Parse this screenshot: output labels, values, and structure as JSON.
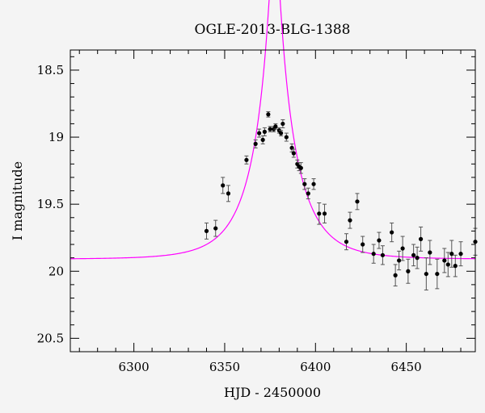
{
  "chart_data": {
    "type": "scatter",
    "title": "OGLE-2013-BLG-1388",
    "xlabel": "HJD - 2450000",
    "ylabel": "I magnitude",
    "xlim": [
      6265,
      6488
    ],
    "ylim": [
      20.6,
      18.35
    ],
    "y_inverted": true,
    "xticks": [
      6300,
      6350,
      6400,
      6450
    ],
    "yticks": [
      18.5,
      19,
      19.5,
      20,
      20.5
    ],
    "xtick_labels": [
      "6300",
      "6350",
      "6400",
      "6450"
    ],
    "ytick_labels": [
      "18.5",
      "19",
      "19.5",
      "20",
      "20.5"
    ],
    "grid": false,
    "colors": {
      "points": "#000000",
      "model": "#ff00ff",
      "errorbar": "#555555"
    },
    "model": {
      "t0": 6377.5,
      "u0": 0.108,
      "tE": 23.0,
      "baseline_mag": 19.91
    },
    "series": [
      {
        "kind": "data",
        "x": [
          6340,
          6345,
          6349,
          6352,
          6362,
          6367,
          6369,
          6371,
          6372,
          6374,
          6375,
          6377,
          6378,
          6380,
          6381,
          6382,
          6384,
          6387,
          6388,
          6390,
          6391,
          6392,
          6394,
          6396,
          6399,
          6402,
          6405,
          6417,
          6419,
          6423,
          6426,
          6432,
          6435,
          6437,
          6442,
          6444,
          6446,
          6448,
          6451,
          6454,
          6456,
          6458,
          6461,
          6463,
          6467,
          6471,
          6473,
          6475,
          6477,
          6480,
          6488
        ],
        "y": [
          19.7,
          19.68,
          19.36,
          19.42,
          19.17,
          19.05,
          18.97,
          19.02,
          18.96,
          18.83,
          18.94,
          18.94,
          18.92,
          18.95,
          18.97,
          18.9,
          19.0,
          19.08,
          19.12,
          19.2,
          19.22,
          19.23,
          19.35,
          19.42,
          19.35,
          19.57,
          19.57,
          19.78,
          19.62,
          19.48,
          19.8,
          19.87,
          19.77,
          19.88,
          19.71,
          20.03,
          19.92,
          19.83,
          20.0,
          19.88,
          19.9,
          19.76,
          20.02,
          19.86,
          20.02,
          19.92,
          19.95,
          19.87,
          19.96,
          19.87,
          19.78
        ],
        "err": [
          0.06,
          0.06,
          0.06,
          0.06,
          0.03,
          0.03,
          0.03,
          0.03,
          0.03,
          0.02,
          0.02,
          0.02,
          0.02,
          0.02,
          0.02,
          0.03,
          0.03,
          0.03,
          0.03,
          0.03,
          0.03,
          0.04,
          0.04,
          0.04,
          0.04,
          0.08,
          0.07,
          0.06,
          0.06,
          0.06,
          0.06,
          0.07,
          0.06,
          0.07,
          0.07,
          0.08,
          0.07,
          0.09,
          0.09,
          0.08,
          0.08,
          0.09,
          0.12,
          0.09,
          0.11,
          0.09,
          0.09,
          0.1,
          0.08,
          0.09,
          0.1
        ]
      }
    ]
  }
}
